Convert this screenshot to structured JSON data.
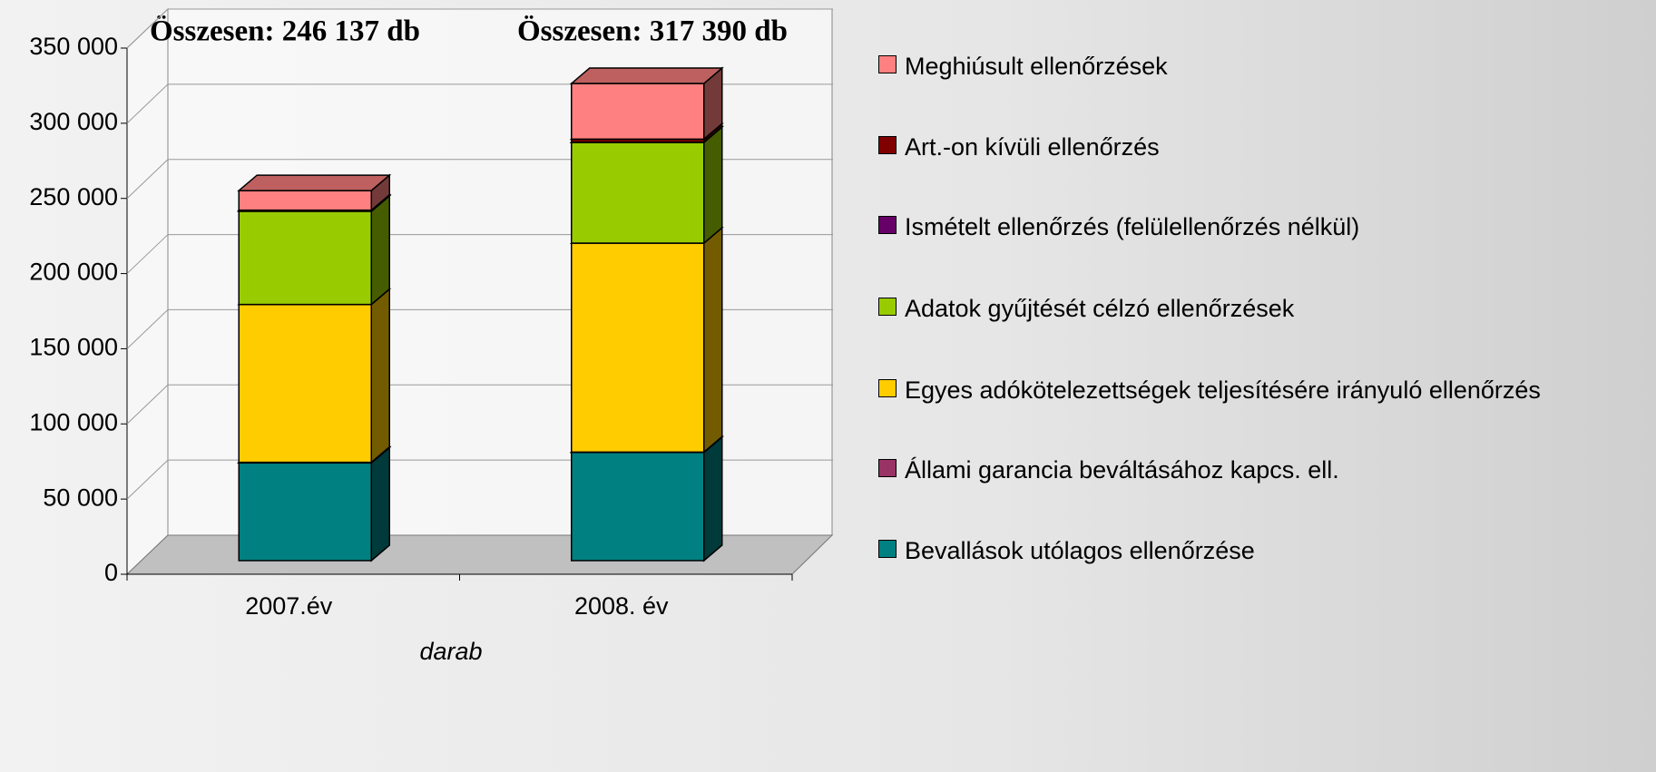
{
  "chart_data": {
    "type": "bar3d_stacked",
    "annotations": [
      "Összesen: 246 137 db",
      "Összesen: 317 390 db"
    ],
    "categories": [
      "2007.év",
      "2008. év"
    ],
    "x_label": "darab",
    "ylim": [
      0,
      350000
    ],
    "yticks": [
      0,
      {
        "value": 50000,
        "label": "50 000"
      },
      {
        "value": 100000,
        "label": "100 000"
      },
      {
        "value": 150000,
        "label": "150 000"
      },
      {
        "value": 200000,
        "label": "200 000"
      },
      {
        "value": 250000,
        "label": "250 000"
      },
      {
        "value": 300000,
        "label": "300 000"
      },
      {
        "value": 350000,
        "label": "350 000"
      }
    ],
    "grid": true,
    "legend": "right",
    "series": [
      {
        "name": "Bevallások utólagos ellenőrzése",
        "color": "#008080",
        "values": [
          65000,
          72000
        ]
      },
      {
        "name": "Állami garancia beváltásához kapcs. ell.",
        "color": "#993366",
        "values": [
          400,
          200
        ]
      },
      {
        "name": "Egyes adókötelezettségek teljesítésére irányuló ellenőrzés",
        "color": "#ffcc00",
        "values": [
          105000,
          139000
        ]
      },
      {
        "name": "Adatok gyűjtését célzó ellenőrzések",
        "color": "#99cc00",
        "values": [
          62000,
          67000
        ]
      },
      {
        "name": "Ismételt ellenőrzés (felülellenőrzés nélkül)",
        "color": "#660066",
        "values": [
          300,
          190
        ]
      },
      {
        "name": "Art.-on kívüli ellenőrzés",
        "color": "#800000",
        "values": [
          437,
          2000
        ]
      },
      {
        "name": "Meghiúsult ellenőrzések",
        "color": "#ff8080",
        "values": [
          13000,
          37000
        ]
      }
    ]
  }
}
